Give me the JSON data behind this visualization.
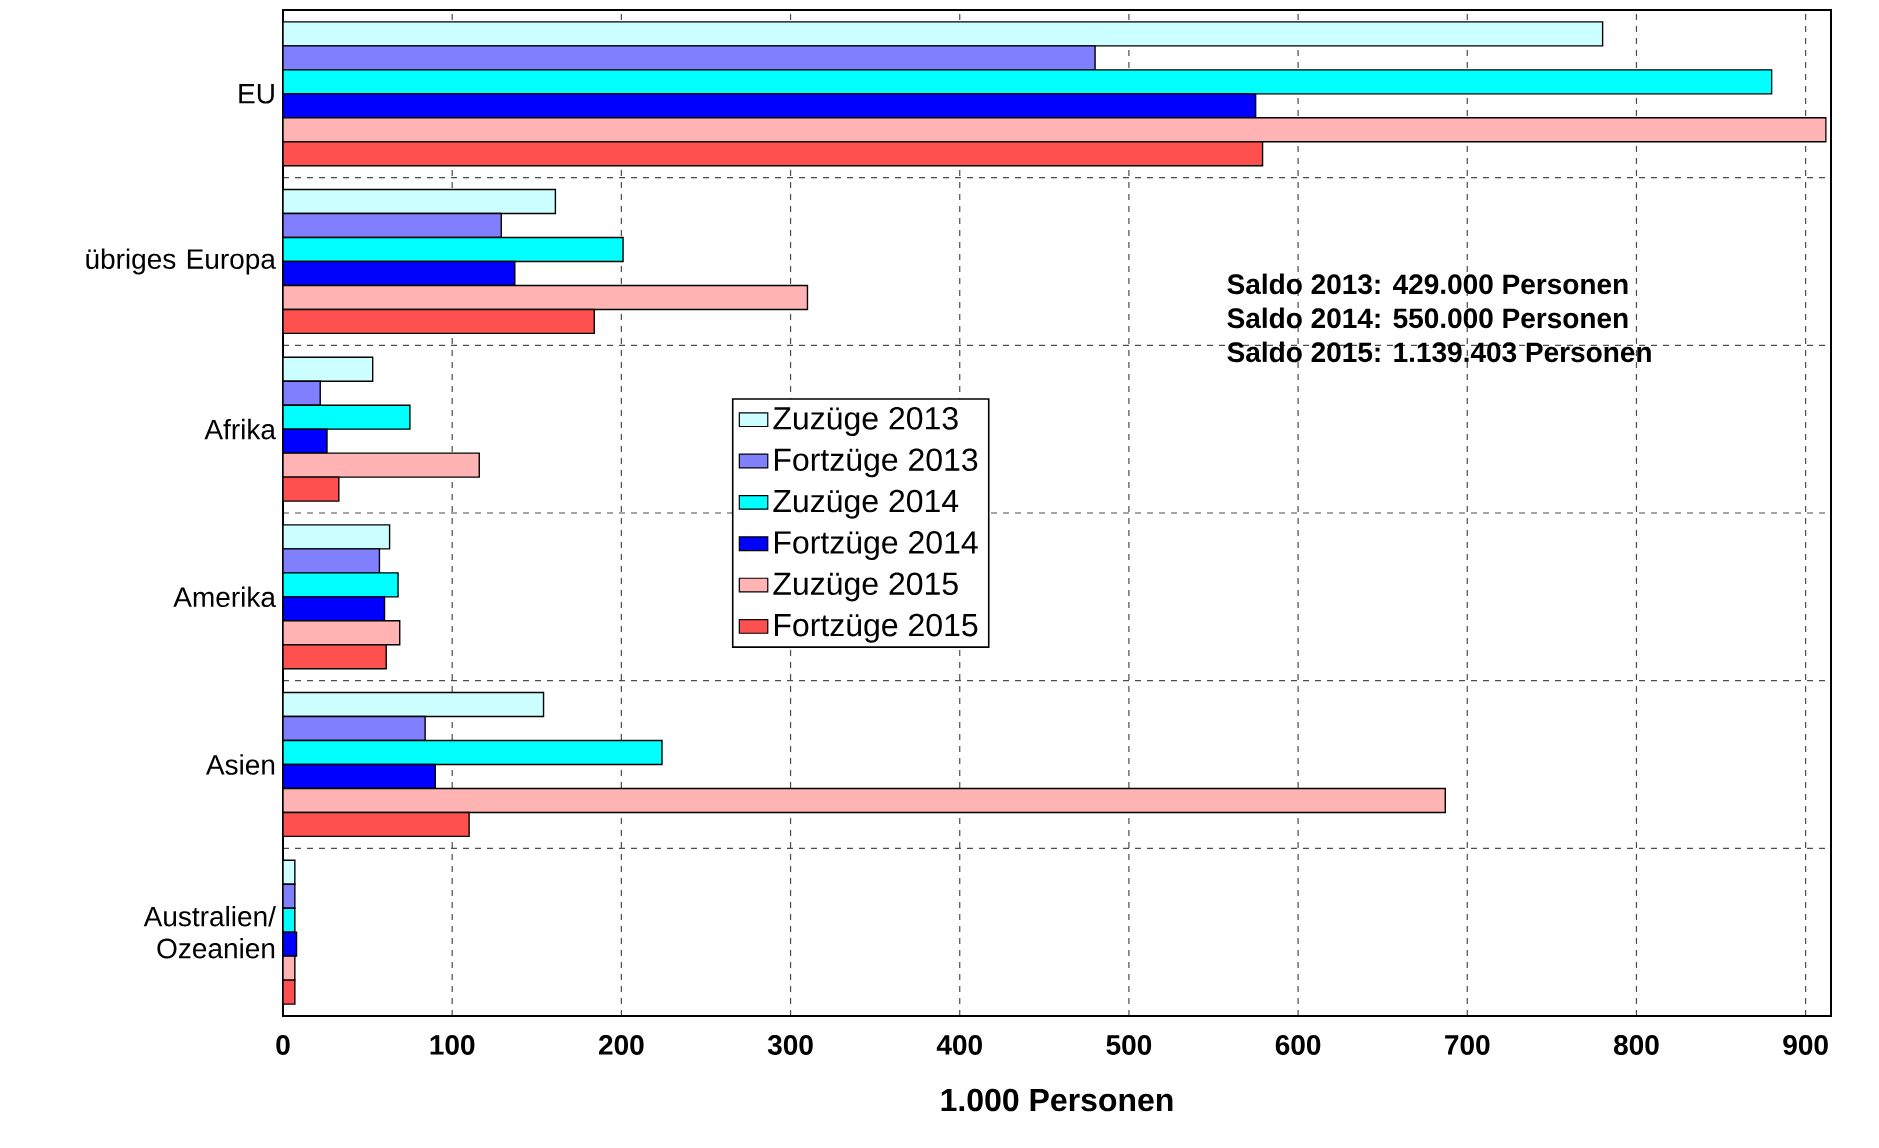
{
  "chart_data": {
    "type": "bar",
    "orientation": "horizontal",
    "xlabel": "1.000 Personen",
    "categories": [
      "EU",
      "übriges Europa",
      "Afrika",
      "Amerika",
      "Asien",
      "Australien/ Ozeanien"
    ],
    "series": [
      {
        "name": "Zuzüge 2013",
        "color": "#ccffff",
        "values": [
          780,
          161,
          53,
          63,
          154,
          7
        ]
      },
      {
        "name": "Fortzüge 2013",
        "color": "#8080ff",
        "values": [
          480,
          129,
          22,
          57,
          84,
          7
        ]
      },
      {
        "name": "Zuzüge 2014",
        "color": "#00ffff",
        "values": [
          880,
          201,
          75,
          68,
          224,
          7
        ]
      },
      {
        "name": "Fortzüge 2014",
        "color": "#0000ff",
        "values": [
          575,
          137,
          26,
          60,
          90,
          8
        ]
      },
      {
        "name": "Zuzüge 2015",
        "color": "#ffb3b3",
        "values": [
          912,
          310,
          116,
          69,
          687,
          7
        ]
      },
      {
        "name": "Fortzüge 2015",
        "color": "#ff5050",
        "values": [
          579,
          184,
          33,
          61,
          110,
          7
        ]
      }
    ],
    "xlim": [
      0,
      915
    ],
    "xticks": [
      0,
      100,
      200,
      300,
      400,
      500,
      600,
      700,
      800,
      900
    ],
    "grid": true,
    "legend": "center",
    "annotations": [
      "Saldo 2013:    429.000 Personen",
      "Saldo 2014:    550.000 Personen",
      "Saldo 2015: 1.139.403 Personen"
    ]
  }
}
